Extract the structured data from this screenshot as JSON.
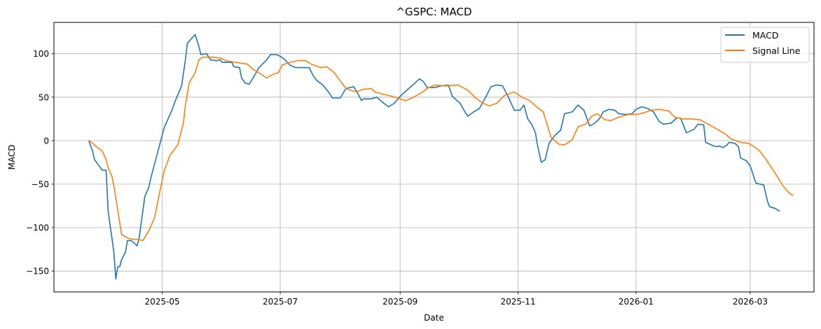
{
  "chart_data": {
    "type": "line",
    "title": "^GSPC: MACD",
    "xlabel": "Date",
    "ylabel": "MACD",
    "ylim": [
      -174,
      136
    ],
    "xlim": [
      "2025-03-06",
      "2026-04-03"
    ],
    "grid": true,
    "legend_position": "upper right",
    "yticks": [
      -150,
      -100,
      -50,
      0,
      50,
      100
    ],
    "ytick_labels": [
      "−150",
      "−100",
      "−50",
      "0",
      "50",
      "100"
    ],
    "xticks": [
      "2025-05-01",
      "2025-07-01",
      "2025-09-01",
      "2025-11-01",
      "2026-01-01",
      "2026-03-01"
    ],
    "xtick_labels": [
      "2025-05",
      "2025-07",
      "2025-09",
      "2025-11",
      "2026-01",
      "2026-03"
    ],
    "series": [
      {
        "name": "MACD",
        "color": "#1f77b4",
        "points": [
          [
            "2025-03-24",
            0
          ],
          [
            "2025-03-26",
            -12
          ],
          [
            "2025-03-27",
            -22
          ],
          [
            "2025-03-29",
            -28
          ],
          [
            "2025-03-31",
            -34
          ],
          [
            "2025-04-02",
            -34
          ],
          [
            "2025-04-03",
            -80
          ],
          [
            "2025-04-04",
            -97
          ],
          [
            "2025-04-05",
            -112
          ],
          [
            "2025-04-06",
            -129
          ],
          [
            "2025-04-07",
            -159
          ],
          [
            "2025-04-08",
            -145
          ],
          [
            "2025-04-09",
            -145
          ],
          [
            "2025-04-10",
            -137
          ],
          [
            "2025-04-12",
            -128
          ],
          [
            "2025-04-13",
            -115
          ],
          [
            "2025-04-15",
            -115
          ],
          [
            "2025-04-18",
            -121
          ],
          [
            "2025-04-19",
            -113
          ],
          [
            "2025-04-22",
            -64
          ],
          [
            "2025-04-24",
            -54
          ],
          [
            "2025-04-25",
            -44
          ],
          [
            "2025-05-02",
            15
          ],
          [
            "2025-05-04",
            25
          ],
          [
            "2025-05-06",
            35
          ],
          [
            "2025-05-08",
            47
          ],
          [
            "2025-05-11",
            63
          ],
          [
            "2025-05-13",
            93
          ],
          [
            "2025-05-14",
            112
          ],
          [
            "2025-05-18",
            122
          ],
          [
            "2025-05-20",
            108
          ],
          [
            "2025-05-21",
            99
          ],
          [
            "2025-05-24",
            100
          ],
          [
            "2025-05-25",
            96
          ],
          [
            "2025-05-26",
            93
          ],
          [
            "2025-05-29",
            92
          ],
          [
            "2025-05-31",
            93
          ],
          [
            "2025-06-01",
            90
          ],
          [
            "2025-06-04",
            90
          ],
          [
            "2025-06-06",
            90
          ],
          [
            "2025-06-07",
            85
          ],
          [
            "2025-06-10",
            84
          ],
          [
            "2025-06-11",
            72
          ],
          [
            "2025-06-13",
            66
          ],
          [
            "2025-06-15",
            65
          ],
          [
            "2025-06-18",
            76
          ],
          [
            "2025-06-20",
            84
          ],
          [
            "2025-06-24",
            93
          ],
          [
            "2025-06-26",
            99
          ],
          [
            "2025-06-29",
            99
          ],
          [
            "2025-07-01",
            97
          ],
          [
            "2025-07-03",
            94
          ],
          [
            "2025-07-06",
            87
          ],
          [
            "2025-07-09",
            84
          ],
          [
            "2025-07-13",
            84
          ],
          [
            "2025-07-16",
            84
          ],
          [
            "2025-07-18",
            75
          ],
          [
            "2025-07-20",
            69
          ],
          [
            "2025-07-23",
            64
          ],
          [
            "2025-07-26",
            56
          ],
          [
            "2025-07-28",
            49
          ],
          [
            "2025-07-30",
            49
          ],
          [
            "2025-08-01",
            49
          ],
          [
            "2025-08-04",
            60
          ],
          [
            "2025-08-08",
            62
          ],
          [
            "2025-08-10",
            55
          ],
          [
            "2025-08-12",
            46
          ],
          [
            "2025-08-13",
            48
          ],
          [
            "2025-08-17",
            48
          ],
          [
            "2025-08-20",
            50
          ],
          [
            "2025-08-23",
            44
          ],
          [
            "2025-08-26",
            39
          ],
          [
            "2025-08-29",
            43
          ],
          [
            "2025-09-01",
            51
          ],
          [
            "2025-09-05",
            59
          ],
          [
            "2025-09-09",
            67
          ],
          [
            "2025-09-11",
            71
          ],
          [
            "2025-09-13",
            68
          ],
          [
            "2025-09-15",
            61
          ],
          [
            "2025-09-19",
            61
          ],
          [
            "2025-09-22",
            63
          ],
          [
            "2025-09-26",
            64
          ],
          [
            "2025-09-28",
            51
          ],
          [
            "2025-10-02",
            43
          ],
          [
            "2025-10-04",
            35
          ],
          [
            "2025-10-06",
            28
          ],
          [
            "2025-10-09",
            33
          ],
          [
            "2025-10-12",
            37
          ],
          [
            "2025-10-15",
            49
          ],
          [
            "2025-10-18",
            62
          ],
          [
            "2025-10-21",
            64
          ],
          [
            "2025-10-24",
            63
          ],
          [
            "2025-10-27",
            50
          ],
          [
            "2025-10-30",
            35
          ],
          [
            "2025-11-02",
            35
          ],
          [
            "2025-11-04",
            41
          ],
          [
            "2025-11-06",
            25
          ],
          [
            "2025-11-08",
            19
          ],
          [
            "2025-11-10",
            9
          ],
          [
            "2025-11-11",
            -5
          ],
          [
            "2025-11-13",
            -25
          ],
          [
            "2025-11-15",
            -22
          ],
          [
            "2025-11-17",
            -3
          ],
          [
            "2025-11-20",
            6
          ],
          [
            "2025-11-23",
            12
          ],
          [
            "2025-11-25",
            31
          ],
          [
            "2025-11-29",
            33
          ],
          [
            "2025-12-02",
            41
          ],
          [
            "2025-12-05",
            35
          ],
          [
            "2025-12-08",
            17
          ],
          [
            "2025-12-10",
            19
          ],
          [
            "2025-12-13",
            25
          ],
          [
            "2025-12-15",
            33
          ],
          [
            "2025-12-18",
            36
          ],
          [
            "2025-12-21",
            35
          ],
          [
            "2025-12-23",
            31
          ],
          [
            "2025-12-27",
            30
          ],
          [
            "2025-12-30",
            31
          ],
          [
            "2026-01-01",
            36
          ],
          [
            "2026-01-04",
            39
          ],
          [
            "2026-01-07",
            37
          ],
          [
            "2026-01-10",
            33
          ],
          [
            "2026-01-13",
            22
          ],
          [
            "2026-01-15",
            19
          ],
          [
            "2026-01-19",
            20
          ],
          [
            "2026-01-22",
            26
          ],
          [
            "2026-01-24",
            26
          ],
          [
            "2026-01-27",
            9
          ],
          [
            "2026-01-31",
            13
          ],
          [
            "2026-02-02",
            19
          ],
          [
            "2026-02-05",
            18
          ],
          [
            "2026-02-06",
            -2
          ],
          [
            "2026-02-08",
            -4
          ],
          [
            "2026-02-10",
            -6
          ],
          [
            "2026-02-12",
            -7
          ],
          [
            "2026-02-13",
            -6
          ],
          [
            "2026-02-15",
            -8
          ],
          [
            "2026-02-17",
            -5
          ],
          [
            "2026-02-18",
            -2
          ],
          [
            "2026-02-21",
            -3
          ],
          [
            "2026-02-23",
            -7
          ],
          [
            "2026-02-24",
            -20
          ],
          [
            "2026-02-27",
            -23
          ],
          [
            "2026-03-01",
            -29
          ],
          [
            "2026-03-04",
            -49
          ],
          [
            "2026-03-08",
            -51
          ],
          [
            "2026-03-10",
            -70
          ],
          [
            "2026-03-11",
            -76
          ],
          [
            "2026-03-14",
            -78
          ],
          [
            "2026-03-16",
            -81
          ]
        ]
      },
      {
        "name": "Signal Line",
        "color": "#ff7f0e",
        "points": [
          [
            "2025-03-24",
            0
          ],
          [
            "2025-03-26",
            -3
          ],
          [
            "2025-03-28",
            -7
          ],
          [
            "2025-03-31",
            -12
          ],
          [
            "2025-04-02",
            -22
          ],
          [
            "2025-04-03",
            -31
          ],
          [
            "2025-04-05",
            -41
          ],
          [
            "2025-04-06",
            -52
          ],
          [
            "2025-04-08",
            -80
          ],
          [
            "2025-04-10",
            -108
          ],
          [
            "2025-04-14",
            -113
          ],
          [
            "2025-04-19",
            -114
          ],
          [
            "2025-04-21",
            -115
          ],
          [
            "2025-04-24",
            -104
          ],
          [
            "2025-04-27",
            -89
          ],
          [
            "2025-04-30",
            -56
          ],
          [
            "2025-05-02",
            -35
          ],
          [
            "2025-05-05",
            -17
          ],
          [
            "2025-05-09",
            -5
          ],
          [
            "2025-05-12",
            21
          ],
          [
            "2025-05-13",
            41
          ],
          [
            "2025-05-15",
            67
          ],
          [
            "2025-05-18",
            78
          ],
          [
            "2025-05-20",
            93
          ],
          [
            "2025-05-22",
            96
          ],
          [
            "2025-05-27",
            96
          ],
          [
            "2025-05-31",
            95
          ],
          [
            "2025-06-03",
            92
          ],
          [
            "2025-06-08",
            90
          ],
          [
            "2025-06-14",
            88
          ],
          [
            "2025-06-17",
            82
          ],
          [
            "2025-06-20",
            78
          ],
          [
            "2025-06-24",
            72
          ],
          [
            "2025-06-27",
            76
          ],
          [
            "2025-06-30",
            78
          ],
          [
            "2025-07-02",
            87
          ],
          [
            "2025-07-06",
            90
          ],
          [
            "2025-07-10",
            92
          ],
          [
            "2025-07-14",
            92
          ],
          [
            "2025-07-17",
            88
          ],
          [
            "2025-07-22",
            84
          ],
          [
            "2025-07-25",
            85
          ],
          [
            "2025-07-29",
            78
          ],
          [
            "2025-08-01",
            69
          ],
          [
            "2025-08-04",
            60
          ],
          [
            "2025-08-09",
            56
          ],
          [
            "2025-08-13",
            59
          ],
          [
            "2025-08-17",
            60
          ],
          [
            "2025-08-19",
            56
          ],
          [
            "2025-08-24",
            53
          ],
          [
            "2025-08-28",
            51
          ],
          [
            "2025-09-01",
            48
          ],
          [
            "2025-09-04",
            46
          ],
          [
            "2025-09-08",
            50
          ],
          [
            "2025-09-12",
            55
          ],
          [
            "2025-09-15",
            60
          ],
          [
            "2025-09-19",
            64
          ],
          [
            "2025-09-24",
            63
          ],
          [
            "2025-10-01",
            64
          ],
          [
            "2025-10-06",
            58
          ],
          [
            "2025-10-10",
            49
          ],
          [
            "2025-10-14",
            43
          ],
          [
            "2025-10-17",
            40
          ],
          [
            "2025-10-21",
            43
          ],
          [
            "2025-10-25",
            52
          ],
          [
            "2025-10-30",
            56
          ],
          [
            "2025-11-03",
            50
          ],
          [
            "2025-11-07",
            46
          ],
          [
            "2025-11-10",
            40
          ],
          [
            "2025-11-14",
            33
          ],
          [
            "2025-11-18",
            4
          ],
          [
            "2025-11-22",
            -4
          ],
          [
            "2025-11-25",
            -5
          ],
          [
            "2025-11-29",
            1
          ],
          [
            "2025-12-02",
            16
          ],
          [
            "2025-12-06",
            19
          ],
          [
            "2025-12-09",
            28
          ],
          [
            "2025-12-12",
            31
          ],
          [
            "2025-12-16",
            24
          ],
          [
            "2025-12-19",
            23
          ],
          [
            "2025-12-23",
            27
          ],
          [
            "2025-12-28",
            30
          ],
          [
            "2026-01-01",
            30
          ],
          [
            "2026-01-05",
            32
          ],
          [
            "2026-01-09",
            35
          ],
          [
            "2026-01-13",
            36
          ],
          [
            "2026-01-18",
            34
          ],
          [
            "2026-01-21",
            27
          ],
          [
            "2026-01-25",
            25
          ],
          [
            "2026-01-30",
            25
          ],
          [
            "2026-02-03",
            24
          ],
          [
            "2026-02-08",
            18
          ],
          [
            "2026-02-12",
            13
          ],
          [
            "2026-02-16",
            8
          ],
          [
            "2026-02-19",
            2
          ],
          [
            "2026-02-24",
            -2
          ],
          [
            "2026-02-28",
            -3
          ],
          [
            "2026-03-03",
            -7
          ],
          [
            "2026-03-06",
            -12
          ],
          [
            "2026-03-09",
            -21
          ],
          [
            "2026-03-12",
            -31
          ],
          [
            "2026-03-15",
            -41
          ],
          [
            "2026-03-18",
            -52
          ],
          [
            "2026-03-21",
            -60
          ],
          [
            "2026-03-23",
            -63
          ]
        ]
      }
    ]
  }
}
